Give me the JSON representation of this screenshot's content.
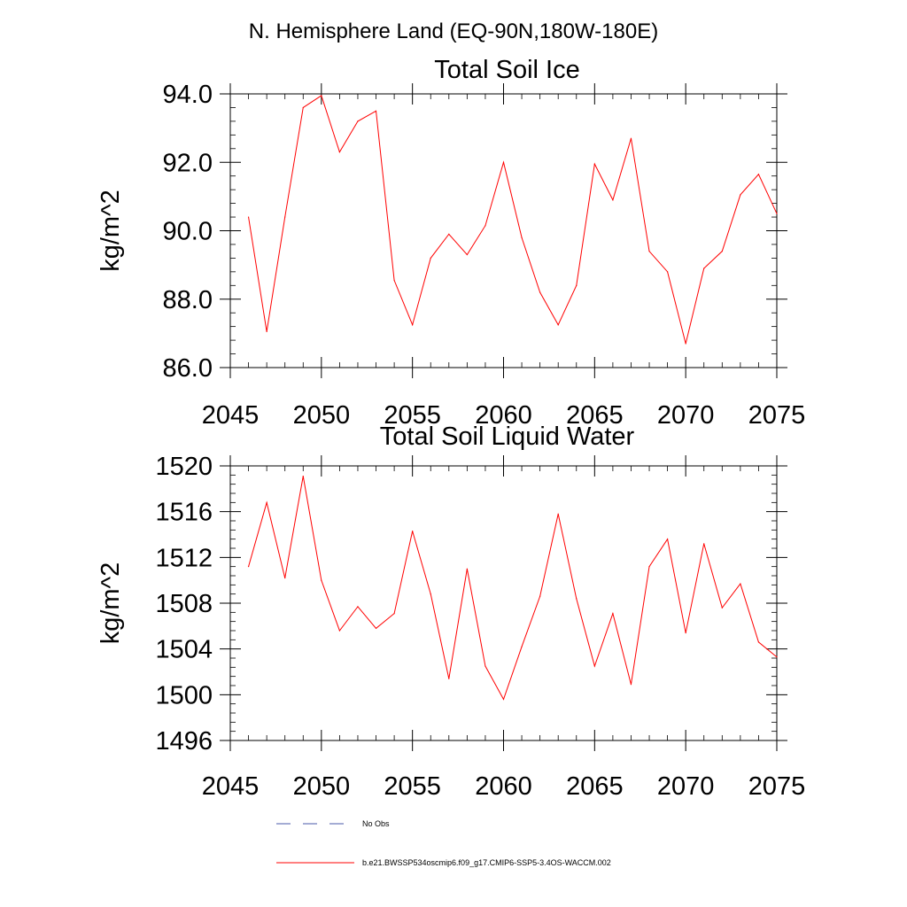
{
  "figure_title": "N. Hemisphere Land (EQ-90N,180W-180E)",
  "colors": {
    "model_line": "#ff0000",
    "obs_line": "#4a5aa8",
    "axis": "#000000"
  },
  "chart_data": [
    {
      "type": "line",
      "title": "Total Soil Ice",
      "xlabel": "",
      "ylabel": "kg/m^2",
      "xlim": [
        2045,
        2075
      ],
      "ylim": [
        86,
        94
      ],
      "xticks": [
        2045,
        2050,
        2055,
        2060,
        2065,
        2070,
        2075
      ],
      "yticks": [
        86,
        88,
        90,
        92,
        94
      ],
      "ytick_labels": [
        "86.0",
        "88.0",
        "90.0",
        "92.0",
        "94.0"
      ],
      "x": [
        2046,
        2047,
        2048,
        2049,
        2050,
        2051,
        2052,
        2053,
        2054,
        2055,
        2056,
        2057,
        2058,
        2059,
        2060,
        2061,
        2062,
        2063,
        2064,
        2065,
        2066,
        2067,
        2068,
        2069,
        2070,
        2071,
        2072,
        2073,
        2074,
        2075
      ],
      "series": [
        {
          "name": "b.e21.BWSSP534oscmip6.f09_g17.CMIP6-SSP5-3.4OS-WACCM.002",
          "values": [
            90.4,
            87.05,
            90.4,
            93.6,
            93.95,
            92.3,
            93.2,
            93.5,
            88.55,
            87.25,
            89.2,
            89.9,
            89.3,
            90.15,
            92.0,
            89.8,
            88.2,
            87.25,
            88.4,
            91.95,
            90.9,
            92.7,
            89.4,
            88.8,
            86.7,
            88.9,
            89.4,
            91.05,
            91.65,
            90.5
          ]
        }
      ]
    },
    {
      "type": "line",
      "title": "Total Soil Liquid Water",
      "xlabel": "",
      "ylabel": "kg/m^2",
      "xlim": [
        2045,
        2075
      ],
      "ylim": [
        1496,
        1520
      ],
      "xticks": [
        2045,
        2050,
        2055,
        2060,
        2065,
        2070,
        2075
      ],
      "yticks": [
        1496,
        1500,
        1504,
        1508,
        1512,
        1516,
        1520
      ],
      "ytick_labels": [
        "1496",
        "1500",
        "1504",
        "1508",
        "1512",
        "1516",
        "1520"
      ],
      "x": [
        2046,
        2047,
        2048,
        2049,
        2050,
        2051,
        2052,
        2053,
        2054,
        2055,
        2056,
        2057,
        2058,
        2059,
        2060,
        2061,
        2062,
        2063,
        2064,
        2065,
        2066,
        2067,
        2068,
        2069,
        2070,
        2071,
        2072,
        2073,
        2074,
        2075
      ],
      "series": [
        {
          "name": "b.e21.BWSSP534oscmip6.f09_g17.CMIP6-SSP5-3.4OS-WACCM.002",
          "values": [
            1511.2,
            1516.8,
            1510.2,
            1519.1,
            1510.0,
            1505.6,
            1507.7,
            1505.8,
            1507.1,
            1514.3,
            1508.8,
            1501.4,
            1511.0,
            1502.5,
            1499.6,
            1504.2,
            1508.6,
            1515.8,
            1508.4,
            1502.5,
            1507.1,
            1500.9,
            1511.2,
            1513.6,
            1505.4,
            1513.2,
            1507.6,
            1509.7,
            1504.6,
            1503.3
          ]
        }
      ]
    }
  ],
  "legend": [
    {
      "label": "No Obs",
      "style": "dashed",
      "color_key": "obs_line"
    },
    {
      "label": "b.e21.BWSSP534oscmip6.f09_g17.CMIP6-SSP5-3.4OS-WACCM.002",
      "style": "solid",
      "color_key": "model_line"
    }
  ]
}
